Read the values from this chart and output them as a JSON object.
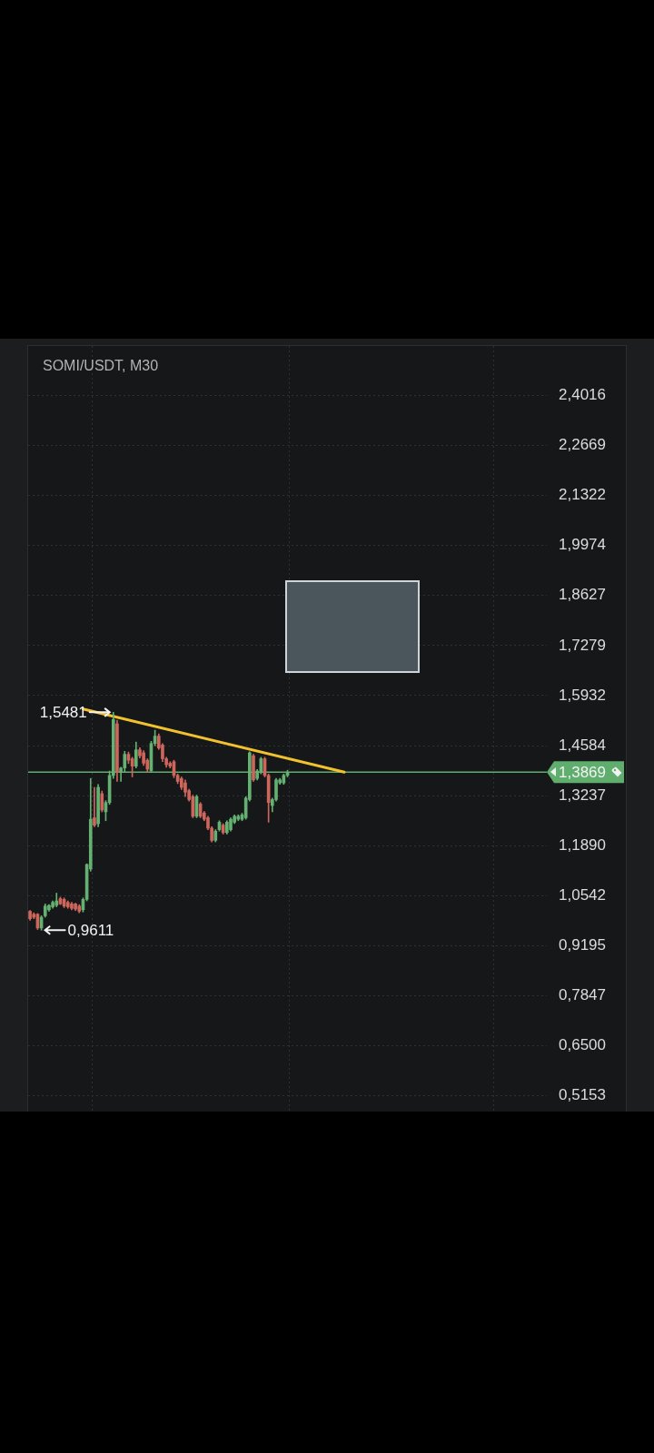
{
  "chart_data": {
    "type": "candlestick",
    "title": "SOMI/USDT, M30",
    "categories": [
      null,
      null,
      null,
      null,
      null,
      null,
      null,
      null,
      null,
      null,
      null,
      null,
      null,
      null,
      null,
      null,
      null,
      null,
      null,
      null,
      null,
      null,
      null,
      null,
      null,
      null,
      null,
      null,
      null,
      null,
      null,
      null,
      null,
      null,
      null,
      null,
      null,
      null,
      null,
      null,
      null,
      null,
      null,
      null,
      null,
      null,
      null,
      null,
      null,
      null,
      null,
      null,
      null,
      null,
      null,
      null,
      null,
      null,
      null,
      null,
      null,
      null,
      null,
      null,
      null,
      null,
      null,
      null,
      null,
      null,
      null,
      null,
      null,
      null,
      null,
      null,
      null,
      null,
      null,
      null,
      null,
      null,
      null,
      null,
      null,
      null,
      null,
      null,
      null,
      null,
      null,
      null,
      null,
      null,
      null,
      null,
      null,
      null,
      null,
      null,
      null,
      null,
      null,
      null,
      null,
      null,
      null,
      null,
      null,
      null,
      null,
      null,
      null,
      null,
      null,
      null,
      null,
      null,
      null,
      null,
      null,
      null,
      null,
      null,
      null,
      null,
      null,
      null,
      null,
      null,
      null,
      null,
      null,
      null,
      null,
      null,
      null
    ],
    "ohlc": [
      [
        1.012,
        1.014,
        0.988,
        0.992
      ],
      [
        1.004,
        1.008,
        0.992,
        0.996
      ],
      [
        1.004,
        1.006,
        0.963,
        0.967
      ],
      [
        0.967,
        1.0,
        0.9611,
        0.996
      ],
      [
        1.0,
        1.032,
        0.996,
        1.026
      ],
      [
        1.016,
        1.03,
        1.012,
        1.028
      ],
      [
        1.024,
        1.04,
        1.02,
        1.036
      ],
      [
        1.028,
        1.061,
        1.024,
        1.04
      ],
      [
        1.046,
        1.05,
        1.03,
        1.032
      ],
      [
        1.044,
        1.048,
        1.022,
        1.026
      ],
      [
        1.036,
        1.04,
        1.02,
        1.024
      ],
      [
        1.032,
        1.036,
        1.016,
        1.02
      ],
      [
        1.032,
        1.034,
        1.014,
        1.018
      ],
      [
        1.026,
        1.03,
        1.008,
        1.012
      ],
      [
        1.016,
        1.048,
        1.01,
        1.044
      ],
      [
        1.044,
        1.14,
        1.04,
        1.138
      ],
      [
        1.126,
        1.37,
        1.12,
        1.26
      ],
      [
        1.264,
        1.346,
        1.24,
        1.244
      ],
      [
        1.248,
        1.354,
        1.24,
        1.346
      ],
      [
        1.329,
        1.336,
        1.28,
        1.285
      ],
      [
        1.28,
        1.31,
        1.256,
        1.305
      ],
      [
        1.305,
        1.39,
        1.3,
        1.378
      ],
      [
        1.378,
        1.5481,
        1.37,
        1.529
      ],
      [
        1.517,
        1.527,
        1.362,
        1.386
      ],
      [
        1.386,
        1.4,
        1.362,
        1.398
      ],
      [
        1.398,
        1.443,
        1.388,
        1.435
      ],
      [
        1.435,
        1.441,
        1.41,
        1.419
      ],
      [
        1.423,
        1.427,
        1.374,
        1.403
      ],
      [
        1.403,
        1.468,
        1.398,
        1.447
      ],
      [
        1.447,
        1.453,
        1.425,
        1.431
      ],
      [
        1.439,
        1.445,
        1.405,
        1.411
      ],
      [
        1.419,
        1.423,
        1.386,
        1.395
      ],
      [
        1.391,
        1.47,
        1.386,
        1.464
      ],
      [
        1.464,
        1.5,
        1.458,
        1.484
      ],
      [
        1.484,
        1.49,
        1.448,
        1.452
      ],
      [
        1.46,
        1.464,
        1.415,
        1.423
      ],
      [
        1.423,
        1.427,
        1.4,
        1.407
      ],
      [
        1.411,
        1.415,
        1.398,
        1.403
      ],
      [
        1.415,
        1.419,
        1.372,
        1.378
      ],
      [
        1.378,
        1.382,
        1.356,
        1.362
      ],
      [
        1.37,
        1.374,
        1.34,
        1.346
      ],
      [
        1.358,
        1.366,
        1.321,
        1.333
      ],
      [
        1.337,
        1.341,
        1.309,
        1.313
      ],
      [
        1.321,
        1.325,
        1.264,
        1.268
      ],
      [
        1.268,
        1.325,
        1.264,
        1.321
      ],
      [
        1.301,
        1.305,
        1.264,
        1.268
      ],
      [
        1.277,
        1.281,
        1.256,
        1.26
      ],
      [
        1.264,
        1.268,
        1.232,
        1.236
      ],
      [
        1.236,
        1.24,
        1.199,
        1.203
      ],
      [
        1.203,
        1.232,
        1.199,
        1.228
      ],
      [
        1.232,
        1.256,
        1.228,
        1.252
      ],
      [
        1.244,
        1.248,
        1.22,
        1.224
      ],
      [
        1.224,
        1.256,
        1.22,
        1.252
      ],
      [
        1.232,
        1.264,
        1.228,
        1.26
      ],
      [
        1.252,
        1.272,
        1.248,
        1.268
      ],
      [
        1.26,
        1.272,
        1.256,
        1.268
      ],
      [
        1.26,
        1.276,
        1.256,
        1.272
      ],
      [
        1.264,
        1.321,
        1.26,
        1.317
      ],
      [
        1.313,
        1.442,
        1.309,
        1.439
      ],
      [
        1.431,
        1.435,
        1.362,
        1.366
      ],
      [
        1.37,
        1.394,
        1.366,
        1.39
      ],
      [
        1.386,
        1.427,
        1.382,
        1.423
      ],
      [
        1.423,
        1.427,
        1.374,
        1.378
      ],
      [
        1.378,
        1.382,
        1.252,
        1.305
      ],
      [
        1.297,
        1.317,
        1.28,
        1.313
      ],
      [
        1.313,
        1.37,
        1.309,
        1.366
      ],
      [
        1.358,
        1.37,
        1.354,
        1.366
      ],
      [
        1.358,
        1.382,
        1.354,
        1.378
      ],
      [
        1.378,
        1.392,
        1.374,
        1.3869
      ],
      null,
      null,
      null,
      null,
      null,
      null,
      null,
      null,
      null,
      null,
      null,
      null,
      null,
      null,
      null,
      null,
      null,
      null,
      null,
      null,
      null,
      null,
      null,
      null,
      null,
      null,
      null,
      null,
      null,
      null,
      null,
      null,
      null,
      null,
      null,
      null,
      null,
      null,
      null,
      null,
      null,
      null,
      null,
      null,
      null,
      null,
      null,
      null,
      null,
      null,
      null,
      null,
      null,
      null,
      null,
      null,
      null,
      null,
      null,
      null,
      null,
      null,
      null,
      null,
      null,
      null,
      null,
      null
    ],
    "colors": [
      "#cf665c",
      "#cf665c",
      "#cf665c",
      "#65b172",
      "#65b172",
      "#65b172",
      "#65b172",
      "#65b172",
      "#cf665c",
      "#cf665c",
      "#cf665c",
      "#cf665c",
      "#cf665c",
      "#cf665c",
      "#65b172",
      "#65b172",
      "#65b172",
      "#cf665c",
      "#65b172",
      "#cf665c",
      "#65b172",
      "#65b172",
      "#65b172",
      "#cf665c",
      "#65b172",
      "#65b172",
      "#cf665c",
      "#cf665c",
      "#65b172",
      "#cf665c",
      "#cf665c",
      "#cf665c",
      "#65b172",
      "#65b172",
      "#cf665c",
      "#cf665c",
      "#cf665c",
      "#cf665c",
      "#cf665c",
      "#cf665c",
      "#cf665c",
      "#cf665c",
      "#cf665c",
      "#cf665c",
      "#65b172",
      "#cf665c",
      "#cf665c",
      "#cf665c",
      "#cf665c",
      "#65b172",
      "#65b172",
      "#cf665c",
      "#65b172",
      "#65b172",
      "#65b172",
      "#65b172",
      "#65b172",
      "#65b172",
      "#65b172",
      "#cf665c",
      "#65b172",
      "#65b172",
      "#cf665c",
      "#cf665c",
      "#65b172",
      "#65b172",
      "#65b172",
      "#65b172",
      "#65b172",
      null,
      null,
      null,
      null,
      null,
      null,
      null,
      null,
      null,
      null,
      null,
      null,
      null,
      null,
      null,
      null,
      null,
      null,
      null,
      null,
      null,
      null,
      null,
      null,
      null,
      null,
      null,
      null,
      null,
      null,
      null,
      null,
      null,
      null,
      null,
      null,
      null,
      null,
      null,
      null,
      null,
      null,
      null,
      null,
      null,
      null,
      null,
      null,
      null,
      null,
      null,
      null,
      null,
      null,
      null,
      null,
      null,
      null,
      null,
      null,
      null,
      null,
      null,
      null,
      null,
      null,
      null,
      null
    ],
    "series": [
      {
        "type": "line",
        "color": "#f2c12e",
        "values": [
          null,
          null,
          null,
          null,
          null,
          null,
          null,
          null,
          null,
          null,
          null,
          null,
          null,
          null,
          1.557,
          null,
          null,
          null,
          null,
          null,
          null,
          null,
          null,
          null,
          null,
          null,
          null,
          null,
          null,
          null,
          null,
          null,
          null,
          null,
          null,
          null,
          null,
          null,
          null,
          null,
          null,
          null,
          null,
          null,
          null,
          null,
          null,
          null,
          null,
          null,
          null,
          null,
          null,
          null,
          null,
          null,
          null,
          null,
          null,
          null,
          null,
          null,
          null,
          null,
          null,
          null,
          null,
          null,
          null,
          null,
          null,
          null,
          null,
          null,
          null,
          null,
          null,
          null,
          null,
          null,
          null,
          null,
          null,
          1.387,
          null,
          null,
          null,
          null,
          null,
          null,
          null,
          null,
          null,
          null,
          null,
          null,
          null,
          null,
          null,
          null,
          null,
          null,
          null,
          null,
          null,
          null,
          null,
          null,
          null,
          null,
          null,
          null,
          null,
          null,
          null,
          null,
          null,
          null,
          null,
          null,
          null,
          null,
          null,
          null,
          null,
          null,
          null,
          null,
          null,
          null,
          null,
          null,
          null,
          null,
          null,
          null,
          null
        ]
      }
    ],
    "ylim": [
      0.4725,
      2.535
    ],
    "yticks": [
      {
        "value": 2.4016,
        "label": "2,4016"
      },
      {
        "value": 2.2669,
        "label": "2,2669"
      },
      {
        "value": 2.1322,
        "label": "2,1322"
      },
      {
        "value": 1.9974,
        "label": "1,9974"
      },
      {
        "value": 1.8627,
        "label": "1,8627"
      },
      {
        "value": 1.7279,
        "label": "1,7279"
      },
      {
        "value": 1.5932,
        "label": "1,5932"
      },
      {
        "value": 1.4584,
        "label": "1,4584"
      },
      {
        "value": 1.3237,
        "label": "1,3237"
      },
      {
        "value": 1.189,
        "label": "1,1890"
      },
      {
        "value": 1.0542,
        "label": "1,0542"
      },
      {
        "value": 0.9195,
        "label": "0,9195"
      },
      {
        "value": 0.7847,
        "label": "0,7847"
      },
      {
        "value": 0.65,
        "label": "0,6500"
      },
      {
        "value": 0.5153,
        "label": "0,5153"
      }
    ],
    "grid": true,
    "ref_lines": [
      {
        "axis": "y",
        "value": 1.3869,
        "label": "1,3869",
        "color": "#5fae6e"
      }
    ],
    "annotations": [
      "1,5481",
      "0,9611"
    ]
  }
}
